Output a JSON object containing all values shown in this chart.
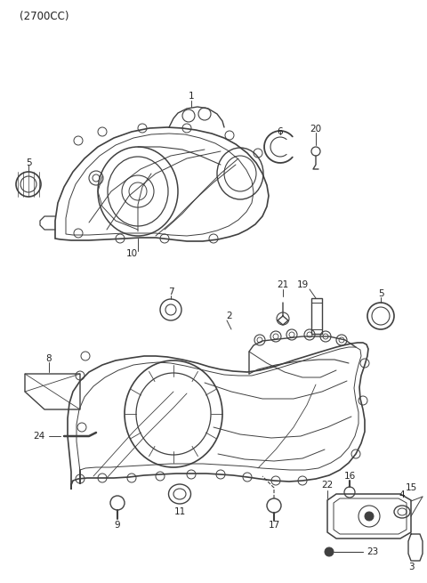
{
  "title": "(2700CC)",
  "bg_color": "#ffffff",
  "figsize": [
    4.8,
    6.55
  ],
  "dpi": 100,
  "line_color": "#404040",
  "font_color": "#222222",
  "font_size": 7.5
}
